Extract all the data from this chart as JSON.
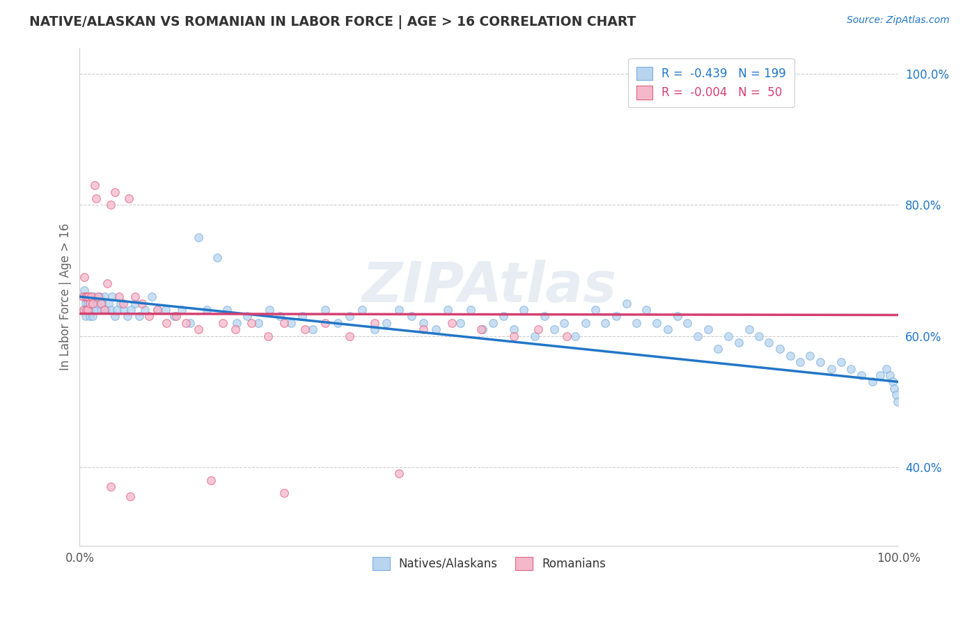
{
  "title": "NATIVE/ALASKAN VS ROMANIAN IN LABOR FORCE | AGE > 16 CORRELATION CHART",
  "source_text": "Source: ZipAtlas.com",
  "ylabel": "In Labor Force | Age > 16",
  "xlim": [
    0.0,
    1.0
  ],
  "ylim": [
    0.28,
    1.04
  ],
  "x_ticks": [
    0.0,
    1.0
  ],
  "x_tick_labels": [
    "0.0%",
    "100.0%"
  ],
  "y_ticks": [
    0.4,
    0.6,
    0.8,
    1.0
  ],
  "y_tick_labels": [
    "40.0%",
    "60.0%",
    "80.0%",
    "100.0%"
  ],
  "legend_r_entries": [
    {
      "label": "R =  -0.439   N = 199",
      "color": "#b8d4ee",
      "text_color": "#2176c7"
    },
    {
      "label": "R =  -0.004   N =  50",
      "color": "#f5b8ca",
      "text_color": "#d44070"
    }
  ],
  "scatter_native": {
    "color": "#b8d4ee",
    "edgecolor": "#7aafe0",
    "alpha": 0.75,
    "size": 70,
    "x": [
      0.005,
      0.006,
      0.006,
      0.007,
      0.007,
      0.008,
      0.009,
      0.01,
      0.011,
      0.012,
      0.013,
      0.014,
      0.015,
      0.016,
      0.018,
      0.02,
      0.022,
      0.024,
      0.026,
      0.028,
      0.03,
      0.032,
      0.035,
      0.038,
      0.04,
      0.043,
      0.046,
      0.05,
      0.054,
      0.058,
      0.063,
      0.068,
      0.073,
      0.08,
      0.088,
      0.095,
      0.105,
      0.115,
      0.125,
      0.135,
      0.145,
      0.155,
      0.168,
      0.18,
      0.192,
      0.205,
      0.218,
      0.232,
      0.245,
      0.258,
      0.272,
      0.285,
      0.3,
      0.315,
      0.33,
      0.345,
      0.36,
      0.375,
      0.39,
      0.405,
      0.42,
      0.435,
      0.45,
      0.465,
      0.478,
      0.492,
      0.505,
      0.518,
      0.53,
      0.542,
      0.556,
      0.568,
      0.58,
      0.592,
      0.605,
      0.618,
      0.63,
      0.642,
      0.655,
      0.668,
      0.68,
      0.692,
      0.705,
      0.718,
      0.73,
      0.742,
      0.755,
      0.768,
      0.78,
      0.792,
      0.805,
      0.818,
      0.83,
      0.842,
      0.855,
      0.868,
      0.88,
      0.892,
      0.905,
      0.918,
      0.93,
      0.942,
      0.955,
      0.968,
      0.978,
      0.985,
      0.99,
      0.993,
      0.995,
      0.997,
      0.999
    ],
    "y": [
      0.66,
      0.64,
      0.67,
      0.65,
      0.63,
      0.66,
      0.64,
      0.65,
      0.66,
      0.63,
      0.64,
      0.66,
      0.65,
      0.63,
      0.66,
      0.64,
      0.65,
      0.66,
      0.64,
      0.65,
      0.66,
      0.64,
      0.65,
      0.64,
      0.66,
      0.63,
      0.64,
      0.65,
      0.64,
      0.63,
      0.64,
      0.65,
      0.63,
      0.64,
      0.66,
      0.64,
      0.64,
      0.63,
      0.64,
      0.62,
      0.75,
      0.64,
      0.72,
      0.64,
      0.62,
      0.63,
      0.62,
      0.64,
      0.63,
      0.62,
      0.63,
      0.61,
      0.64,
      0.62,
      0.63,
      0.64,
      0.61,
      0.62,
      0.64,
      0.63,
      0.62,
      0.61,
      0.64,
      0.62,
      0.64,
      0.61,
      0.62,
      0.63,
      0.61,
      0.64,
      0.6,
      0.63,
      0.61,
      0.62,
      0.6,
      0.62,
      0.64,
      0.62,
      0.63,
      0.65,
      0.62,
      0.64,
      0.62,
      0.61,
      0.63,
      0.62,
      0.6,
      0.61,
      0.58,
      0.6,
      0.59,
      0.61,
      0.6,
      0.59,
      0.58,
      0.57,
      0.56,
      0.57,
      0.56,
      0.55,
      0.56,
      0.55,
      0.54,
      0.53,
      0.54,
      0.55,
      0.54,
      0.53,
      0.52,
      0.51,
      0.5
    ]
  },
  "scatter_romanian": {
    "color": "#f5b8ca",
    "edgecolor": "#e06080",
    "alpha": 0.75,
    "size": 70,
    "x": [
      0.004,
      0.005,
      0.006,
      0.007,
      0.008,
      0.009,
      0.01,
      0.011,
      0.012,
      0.014,
      0.016,
      0.018,
      0.02,
      0.023,
      0.026,
      0.03,
      0.034,
      0.038,
      0.043,
      0.048,
      0.053,
      0.06,
      0.068,
      0.076,
      0.085,
      0.095,
      0.106,
      0.118,
      0.13,
      0.145,
      0.16,
      0.175,
      0.19,
      0.21,
      0.23,
      0.25,
      0.275,
      0.3,
      0.33,
      0.36,
      0.39,
      0.42,
      0.455,
      0.49,
      0.53,
      0.56,
      0.595,
      0.038,
      0.062,
      0.25
    ],
    "y": [
      0.66,
      0.64,
      0.69,
      0.66,
      0.64,
      0.66,
      0.64,
      0.66,
      0.65,
      0.66,
      0.65,
      0.83,
      0.81,
      0.66,
      0.65,
      0.64,
      0.68,
      0.8,
      0.82,
      0.66,
      0.65,
      0.81,
      0.66,
      0.65,
      0.63,
      0.64,
      0.62,
      0.63,
      0.62,
      0.61,
      0.38,
      0.62,
      0.61,
      0.62,
      0.6,
      0.62,
      0.61,
      0.62,
      0.6,
      0.62,
      0.39,
      0.61,
      0.62,
      0.61,
      0.6,
      0.61,
      0.6,
      0.37,
      0.355,
      0.36
    ]
  },
  "trendline_native": {
    "x_start": 0.0,
    "x_end": 1.0,
    "y_start": 0.66,
    "y_end": 0.53,
    "color": "#2176c7",
    "linewidth": 2.5
  },
  "trendline_romanian": {
    "x_start": 0.0,
    "x_end": 1.0,
    "y_start": 0.634,
    "y_end": 0.632,
    "color": "#d44070",
    "linewidth": 2.5
  },
  "watermark": "ZIPAtlas",
  "background_color": "#ffffff",
  "grid_color": "#cccccc",
  "title_color": "#333333",
  "axis_label_color": "#666666",
  "bottom_legend": [
    {
      "label": "Natives/Alaskans",
      "color": "#b8d4ee",
      "edgecolor": "#7aafe0"
    },
    {
      "label": "Romanians",
      "color": "#f5b8ca",
      "edgecolor": "#e06080"
    }
  ]
}
